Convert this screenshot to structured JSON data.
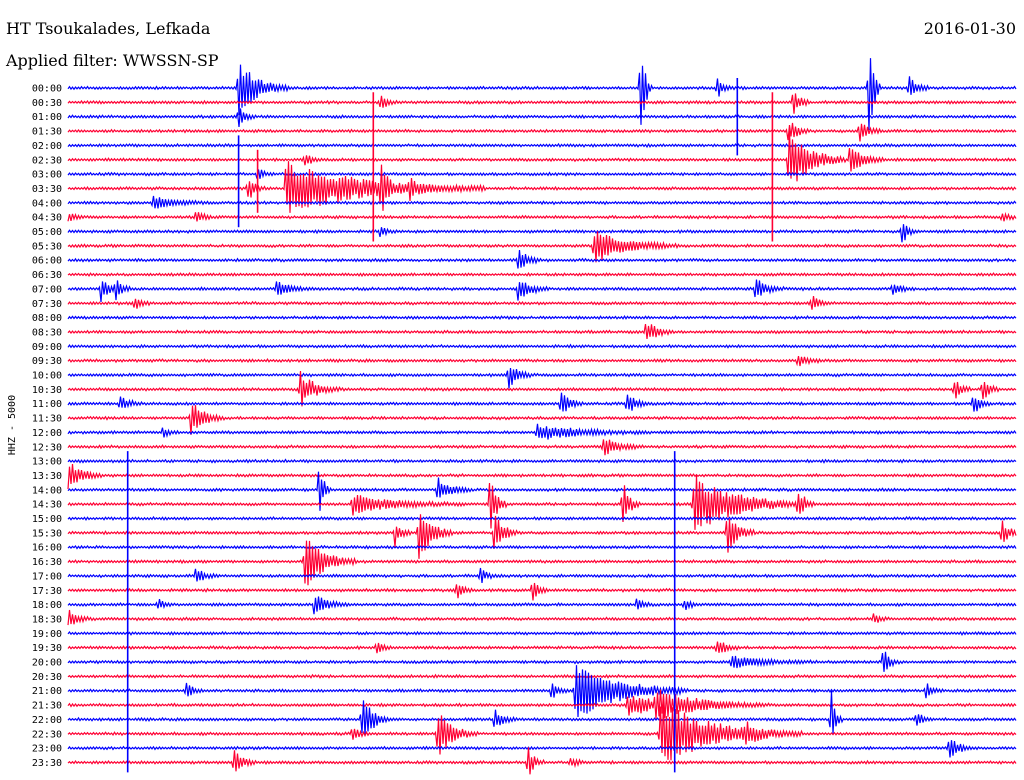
{
  "header": {
    "station": "HT Tsoukalades, Lefkada",
    "date": "2016-01-30",
    "filter": "Applied filter: WWSSN-SP"
  },
  "chart_data": {
    "type": "line",
    "ylabel": "HHZ - 5000",
    "row_colors": [
      "#0000ff",
      "#ff0033"
    ],
    "tick_labels": [
      "00:00",
      "00:30",
      "01:00",
      "01:30",
      "02:00",
      "02:30",
      "03:00",
      "03:30",
      "04:00",
      "04:30",
      "05:00",
      "05:30",
      "06:00",
      "06:30",
      "07:00",
      "07:30",
      "08:00",
      "08:30",
      "09:00",
      "09:30",
      "10:00",
      "10:30",
      "11:00",
      "11:30",
      "12:00",
      "12:30",
      "13:00",
      "13:30",
      "14:00",
      "14:30",
      "15:00",
      "15:30",
      "16:00",
      "16:30",
      "17:00",
      "17:30",
      "18:00",
      "18:30",
      "19:00",
      "19:30",
      "20:00",
      "20:30",
      "21:00",
      "21:30",
      "22:00",
      "22:30",
      "23:00",
      "23:30"
    ],
    "events": [
      {
        "row": 0,
        "x": 0.18,
        "amp": 28,
        "dur": 0.018
      },
      {
        "row": 0,
        "x": 0.604,
        "amp": 60,
        "dur": 0.004
      },
      {
        "row": 0,
        "x": 0.685,
        "amp": 10,
        "dur": 0.006
      },
      {
        "row": 0,
        "x": 0.845,
        "amp": 70,
        "dur": 0.004
      },
      {
        "row": 0,
        "x": 0.887,
        "amp": 12,
        "dur": 0.008
      },
      {
        "row": 1,
        "x": 0.33,
        "amp": 8,
        "dur": 0.006
      },
      {
        "row": 1,
        "x": 0.765,
        "amp": 16,
        "dur": 0.006
      },
      {
        "row": 2,
        "x": 0.18,
        "amp": 10,
        "dur": 0.006
      },
      {
        "row": 3,
        "x": 0.76,
        "amp": 12,
        "dur": 0.008
      },
      {
        "row": 3,
        "x": 0.835,
        "amp": 10,
        "dur": 0.008
      },
      {
        "row": 5,
        "x": 0.25,
        "amp": 8,
        "dur": 0.006
      },
      {
        "row": 5,
        "x": 0.76,
        "amp": 34,
        "dur": 0.02
      },
      {
        "row": 5,
        "x": 0.825,
        "amp": 16,
        "dur": 0.012
      },
      {
        "row": 6,
        "x": 0.2,
        "amp": 6,
        "dur": 0.006
      },
      {
        "row": 7,
        "x": 0.19,
        "amp": 14,
        "dur": 0.006
      },
      {
        "row": 7,
        "x": 0.23,
        "amp": 28,
        "dur": 0.07
      },
      {
        "row": 7,
        "x": 0.33,
        "amp": 30,
        "dur": 0.004
      },
      {
        "row": 7,
        "x": 0.36,
        "amp": 8,
        "dur": 0.006
      },
      {
        "row": 8,
        "x": 0.09,
        "amp": 6,
        "dur": 0.02
      },
      {
        "row": 9,
        "x": 0.0,
        "amp": 6,
        "dur": 0.006
      },
      {
        "row": 9,
        "x": 0.135,
        "amp": 8,
        "dur": 0.006
      },
      {
        "row": 9,
        "x": 0.985,
        "amp": 6,
        "dur": 0.006
      },
      {
        "row": 10,
        "x": 0.33,
        "amp": 8,
        "dur": 0.004
      },
      {
        "row": 10,
        "x": 0.88,
        "amp": 12,
        "dur": 0.006
      },
      {
        "row": 11,
        "x": 0.555,
        "amp": 18,
        "dur": 0.03
      },
      {
        "row": 12,
        "x": 0.475,
        "amp": 14,
        "dur": 0.008
      },
      {
        "row": 14,
        "x": 0.035,
        "amp": 14,
        "dur": 0.006
      },
      {
        "row": 14,
        "x": 0.05,
        "amp": 12,
        "dur": 0.006
      },
      {
        "row": 14,
        "x": 0.22,
        "amp": 8,
        "dur": 0.012
      },
      {
        "row": 14,
        "x": 0.475,
        "amp": 14,
        "dur": 0.01
      },
      {
        "row": 14,
        "x": 0.725,
        "amp": 12,
        "dur": 0.01
      },
      {
        "row": 14,
        "x": 0.87,
        "amp": 6,
        "dur": 0.008
      },
      {
        "row": 15,
        "x": 0.07,
        "amp": 8,
        "dur": 0.006
      },
      {
        "row": 15,
        "x": 0.785,
        "amp": 10,
        "dur": 0.006
      },
      {
        "row": 17,
        "x": 0.61,
        "amp": 12,
        "dur": 0.01
      },
      {
        "row": 19,
        "x": 0.77,
        "amp": 6,
        "dur": 0.01
      },
      {
        "row": 20,
        "x": 0.465,
        "amp": 14,
        "dur": 0.008
      },
      {
        "row": 21,
        "x": 0.245,
        "amp": 18,
        "dur": 0.014
      },
      {
        "row": 21,
        "x": 0.935,
        "amp": 12,
        "dur": 0.006
      },
      {
        "row": 21,
        "x": 0.965,
        "amp": 14,
        "dur": 0.006
      },
      {
        "row": 22,
        "x": 0.055,
        "amp": 8,
        "dur": 0.008
      },
      {
        "row": 22,
        "x": 0.52,
        "amp": 12,
        "dur": 0.008
      },
      {
        "row": 22,
        "x": 0.59,
        "amp": 12,
        "dur": 0.008
      },
      {
        "row": 22,
        "x": 0.955,
        "amp": 12,
        "dur": 0.006
      },
      {
        "row": 23,
        "x": 0.13,
        "amp": 18,
        "dur": 0.012
      },
      {
        "row": 24,
        "x": 0.1,
        "amp": 6,
        "dur": 0.006
      },
      {
        "row": 24,
        "x": 0.495,
        "amp": 8,
        "dur": 0.04
      },
      {
        "row": 25,
        "x": 0.565,
        "amp": 10,
        "dur": 0.014
      },
      {
        "row": 27,
        "x": 0.0,
        "amp": 16,
        "dur": 0.012
      },
      {
        "row": 28,
        "x": 0.265,
        "amp": 30,
        "dur": 0.004
      },
      {
        "row": 28,
        "x": 0.39,
        "amp": 12,
        "dur": 0.012
      },
      {
        "row": 29,
        "x": 0.3,
        "amp": 10,
        "dur": 0.04
      },
      {
        "row": 29,
        "x": 0.445,
        "amp": 30,
        "dur": 0.006
      },
      {
        "row": 29,
        "x": 0.585,
        "amp": 28,
        "dur": 0.006
      },
      {
        "row": 29,
        "x": 0.66,
        "amp": 30,
        "dur": 0.04
      },
      {
        "row": 29,
        "x": 0.77,
        "amp": 16,
        "dur": 0.006
      },
      {
        "row": 31,
        "x": 0.345,
        "amp": 14,
        "dur": 0.006
      },
      {
        "row": 31,
        "x": 0.37,
        "amp": 30,
        "dur": 0.012
      },
      {
        "row": 31,
        "x": 0.45,
        "amp": 24,
        "dur": 0.008
      },
      {
        "row": 31,
        "x": 0.695,
        "amp": 22,
        "dur": 0.01
      },
      {
        "row": 31,
        "x": 0.985,
        "amp": 12,
        "dur": 0.008
      },
      {
        "row": 33,
        "x": 0.25,
        "amp": 28,
        "dur": 0.018
      },
      {
        "row": 34,
        "x": 0.135,
        "amp": 8,
        "dur": 0.008
      },
      {
        "row": 34,
        "x": 0.435,
        "amp": 8,
        "dur": 0.006
      },
      {
        "row": 35,
        "x": 0.41,
        "amp": 10,
        "dur": 0.006
      },
      {
        "row": 35,
        "x": 0.49,
        "amp": 10,
        "dur": 0.006
      },
      {
        "row": 36,
        "x": 0.095,
        "amp": 6,
        "dur": 0.006
      },
      {
        "row": 36,
        "x": 0.26,
        "amp": 12,
        "dur": 0.012
      },
      {
        "row": 36,
        "x": 0.6,
        "amp": 6,
        "dur": 0.006
      },
      {
        "row": 36,
        "x": 0.65,
        "amp": 6,
        "dur": 0.006
      },
      {
        "row": 37,
        "x": 0.0,
        "amp": 10,
        "dur": 0.008
      },
      {
        "row": 37,
        "x": 0.85,
        "amp": 6,
        "dur": 0.006
      },
      {
        "row": 39,
        "x": 0.325,
        "amp": 6,
        "dur": 0.006
      },
      {
        "row": 39,
        "x": 0.685,
        "amp": 10,
        "dur": 0.008
      },
      {
        "row": 40,
        "x": 0.7,
        "amp": 6,
        "dur": 0.03
      },
      {
        "row": 40,
        "x": 0.86,
        "amp": 14,
        "dur": 0.006
      },
      {
        "row": 42,
        "x": 0.125,
        "amp": 8,
        "dur": 0.006
      },
      {
        "row": 42,
        "x": 0.51,
        "amp": 10,
        "dur": 0.006
      },
      {
        "row": 42,
        "x": 0.535,
        "amp": 30,
        "dur": 0.04
      },
      {
        "row": 42,
        "x": 0.905,
        "amp": 8,
        "dur": 0.006
      },
      {
        "row": 43,
        "x": 0.59,
        "amp": 10,
        "dur": 0.04
      },
      {
        "row": 43,
        "x": 0.62,
        "amp": 12,
        "dur": 0.04
      },
      {
        "row": 44,
        "x": 0.31,
        "amp": 26,
        "dur": 0.01
      },
      {
        "row": 44,
        "x": 0.45,
        "amp": 10,
        "dur": 0.008
      },
      {
        "row": 44,
        "x": 0.805,
        "amp": 30,
        "dur": 0.004
      },
      {
        "row": 44,
        "x": 0.895,
        "amp": 8,
        "dur": 0.006
      },
      {
        "row": 45,
        "x": 0.3,
        "amp": 8,
        "dur": 0.006
      },
      {
        "row": 45,
        "x": 0.39,
        "amp": 24,
        "dur": 0.014
      },
      {
        "row": 45,
        "x": 0.625,
        "amp": 34,
        "dur": 0.05
      },
      {
        "row": 45,
        "x": 0.715,
        "amp": 8,
        "dur": 0.008
      },
      {
        "row": 46,
        "x": 0.93,
        "amp": 14,
        "dur": 0.008
      },
      {
        "row": 47,
        "x": 0.175,
        "amp": 14,
        "dur": 0.008
      },
      {
        "row": 47,
        "x": 0.485,
        "amp": 16,
        "dur": 0.006
      },
      {
        "row": 47,
        "x": 0.53,
        "amp": 6,
        "dur": 0.006
      }
    ],
    "tall_events": [
      {
        "x": 0.063,
        "row_from": 26,
        "row_to": 47
      },
      {
        "x": 0.64,
        "row_from": 26,
        "row_to": 47
      },
      {
        "x": 0.322,
        "row_from": 1,
        "row_to": 10
      },
      {
        "x": 0.743,
        "row_from": 1,
        "row_to": 10
      },
      {
        "x": 0.706,
        "row_from": 0,
        "row_to": 4
      },
      {
        "x": 0.18,
        "row_from": 4,
        "row_to": 9
      },
      {
        "x": 0.2,
        "row_from": 5,
        "row_to": 8
      }
    ]
  }
}
